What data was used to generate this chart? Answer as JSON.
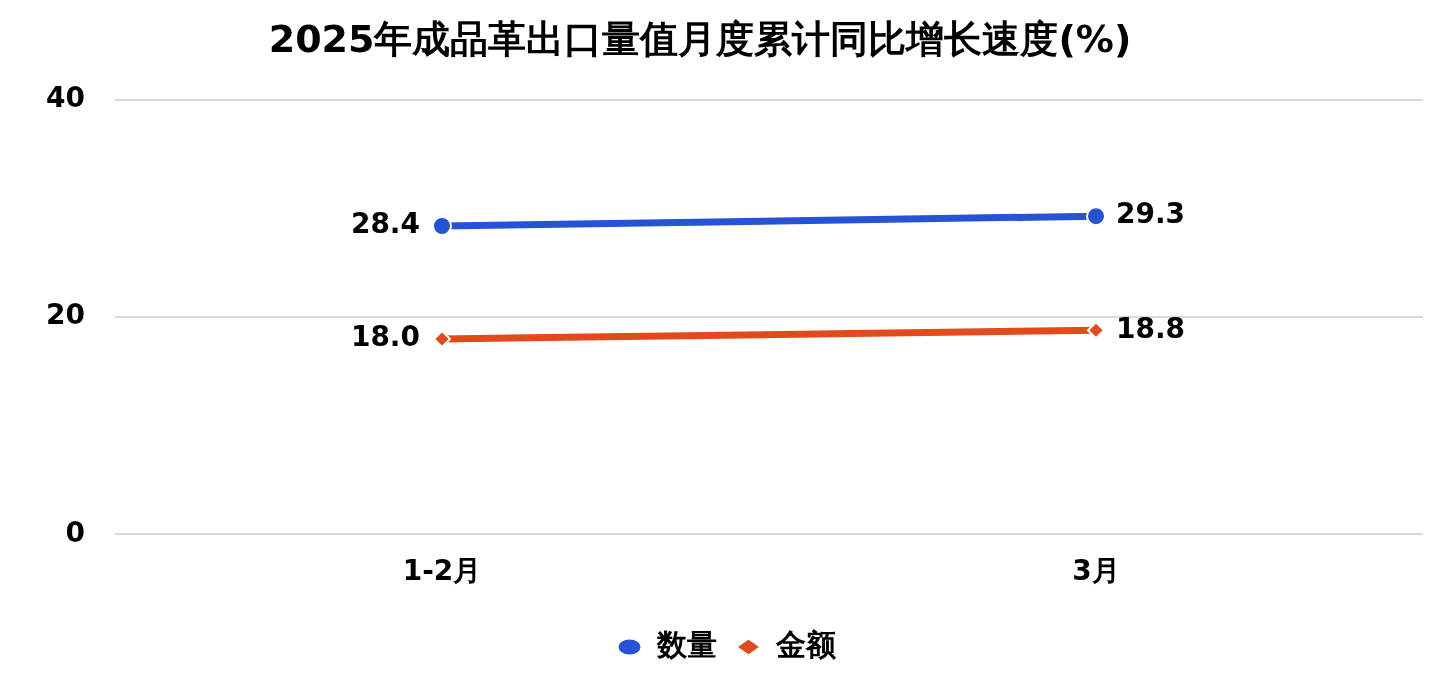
{
  "chart_data": {
    "type": "line",
    "title": "2025年成品革出口量值月度累计同比增长速度(%)",
    "categories": [
      "1-2月",
      "3月"
    ],
    "series": [
      {
        "name": "数量",
        "color": "#2652d4",
        "values": [
          28.4,
          29.3
        ],
        "value_labels": [
          "28.4",
          "29.3"
        ],
        "marker": "circle"
      },
      {
        "name": "金额",
        "color": "#e2491b",
        "values": [
          18.0,
          18.8
        ],
        "value_labels": [
          "18.0",
          "18.8"
        ],
        "marker": "diamond"
      }
    ],
    "ylim": [
      0,
      40
    ],
    "yticks": [
      0,
      20,
      40
    ],
    "grid": "y",
    "legend": "bottom",
    "line_style": "solid"
  }
}
